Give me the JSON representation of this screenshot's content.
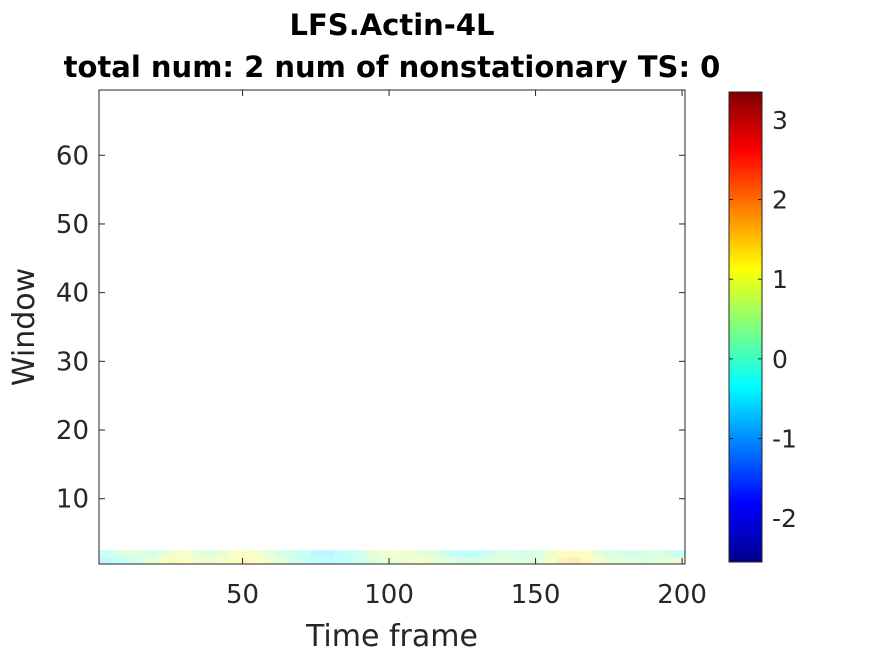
{
  "chart_data": {
    "type": "heatmap",
    "title": "LFS.Actin-4L",
    "subtitle": "total num: 2 num of nonstationary TS: 0",
    "xlabel": "Time frame",
    "ylabel": "Window",
    "xlim": [
      1,
      201
    ],
    "ylim": [
      0.5,
      69.5
    ],
    "x_ticks": [
      50,
      100,
      150,
      200
    ],
    "y_ticks": [
      10,
      20,
      30,
      40,
      50,
      60
    ],
    "colorbar": {
      "colormap": "jet",
      "clim": [
        -2.55,
        3.35
      ],
      "ticks": [
        -2,
        -1,
        0,
        1,
        2,
        3
      ],
      "tick_labels": [
        "-2",
        "-1",
        "0",
        "1",
        "2",
        "3"
      ]
    },
    "rows": [
      {
        "window": 1,
        "values": [
          -0.5,
          -0.3,
          -0.1,
          0.3,
          0.6,
          1.0,
          1.3,
          1.1,
          0.8,
          0.7,
          0.9,
          1.2,
          1.3,
          1.1,
          0.8,
          0.5,
          0.2,
          -0.1,
          -0.3,
          -0.4,
          -0.3,
          -0.2,
          0,
          0.3,
          0.5,
          0.7,
          0.8,
          0.9,
          0.7,
          0.5,
          0.3,
          0.2,
          0.3,
          0.4,
          0.5,
          0.4,
          0.3,
          0.5,
          0.9,
          1.4,
          1.6,
          1.3,
          0.9,
          0.6,
          0.5,
          0.4,
          0.3,
          0.4,
          0.6,
          0.7
        ]
      },
      {
        "window": 2,
        "values": [
          -0.1,
          0.2,
          0.4,
          0.3,
          0.2,
          0.4,
          0.8,
          0.9,
          0.5,
          0.3,
          0.6,
          0.9,
          1.0,
          0.8,
          0.5,
          0.2,
          0,
          -0.2,
          -0.5,
          -0.6,
          -0.4,
          -0.1,
          0.2,
          0.6,
          0.8,
          0.9,
          0.7,
          0.5,
          0.3,
          0.1,
          -0.2,
          -0.4,
          -0.2,
          0.1,
          0.3,
          0.2,
          0.1,
          0.3,
          0.7,
          1.1,
          1.2,
          1.0,
          0.6,
          0.3,
          0.2,
          0.1,
          0.2,
          0.3,
          0.1,
          -0.1
        ]
      }
    ]
  }
}
